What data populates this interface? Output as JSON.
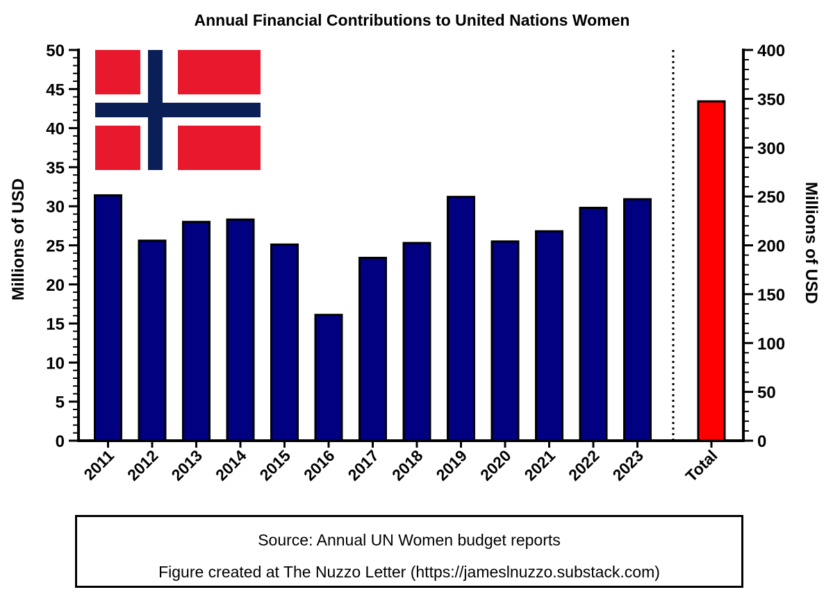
{
  "chart_data": {
    "type": "bar",
    "title": "Annual Financial Contributions to United Nations Women",
    "ylabel_left": "Millions of USD",
    "ylabel_right": "Millions of USD",
    "ylim_left": [
      0,
      50
    ],
    "ylim_right": [
      0,
      400
    ],
    "yticks_left": [
      "0",
      "5",
      "10",
      "15",
      "20",
      "25",
      "30",
      "35",
      "40",
      "45",
      "50"
    ],
    "yticks_right": [
      "0",
      "50",
      "100",
      "150",
      "200",
      "250",
      "300",
      "350",
      "400"
    ],
    "categories": [
      "2011",
      "2012",
      "2013",
      "2014",
      "2015",
      "2016",
      "2017",
      "2018",
      "2019",
      "2020",
      "2021",
      "2022",
      "2023"
    ],
    "values": [
      31.4,
      25.6,
      28.0,
      28.3,
      25.1,
      16.1,
      23.4,
      25.3,
      31.2,
      25.5,
      26.8,
      29.8,
      30.9
    ],
    "total": {
      "label": "Total",
      "value": 347.4,
      "axis": "right"
    },
    "colors": {
      "bars": "#000080",
      "total": "#ff0000",
      "outline": "#000000"
    },
    "grid": false,
    "annotations": {
      "flag": "Norway flag",
      "separator": "dotted vertical line between 2023 and Total"
    }
  },
  "flag_colors": {
    "red": "#e8192c",
    "white": "#ffffff",
    "blue": "#0a1f55"
  },
  "footer": {
    "source": "Source: Annual UN Women budget reports",
    "credit": "Figure created at The Nuzzo Letter (https://jameslnuzzo.substack.com)"
  }
}
